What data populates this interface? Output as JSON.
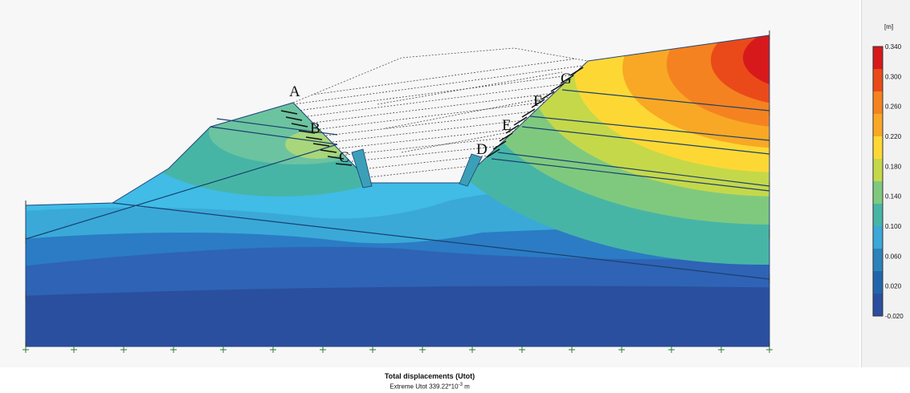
{
  "legend": {
    "unit": "[m]",
    "ticks": [
      "0.340",
      "0.300",
      "0.260",
      "0.220",
      "0.180",
      "0.140",
      "0.100",
      "0.060",
      "0.020",
      "-0.020"
    ],
    "colors": [
      "#d7191c",
      "#ea4a1a",
      "#f58220",
      "#f9a825",
      "#fdd835",
      "#c5d84a",
      "#7fc97f",
      "#47b5a6",
      "#3aa9d8",
      "#2b83ba",
      "#2166ac",
      "#2a4f9e"
    ]
  },
  "points": {
    "A": "A",
    "B": "B",
    "C": "C",
    "D": "D",
    "E": "E",
    "F": "F",
    "G": "G"
  },
  "caption": {
    "title": "Total displacements (Utot)",
    "extreme": "Extreme Utot 339.22*10",
    "exponent": "-3",
    "unit": " m"
  }
}
